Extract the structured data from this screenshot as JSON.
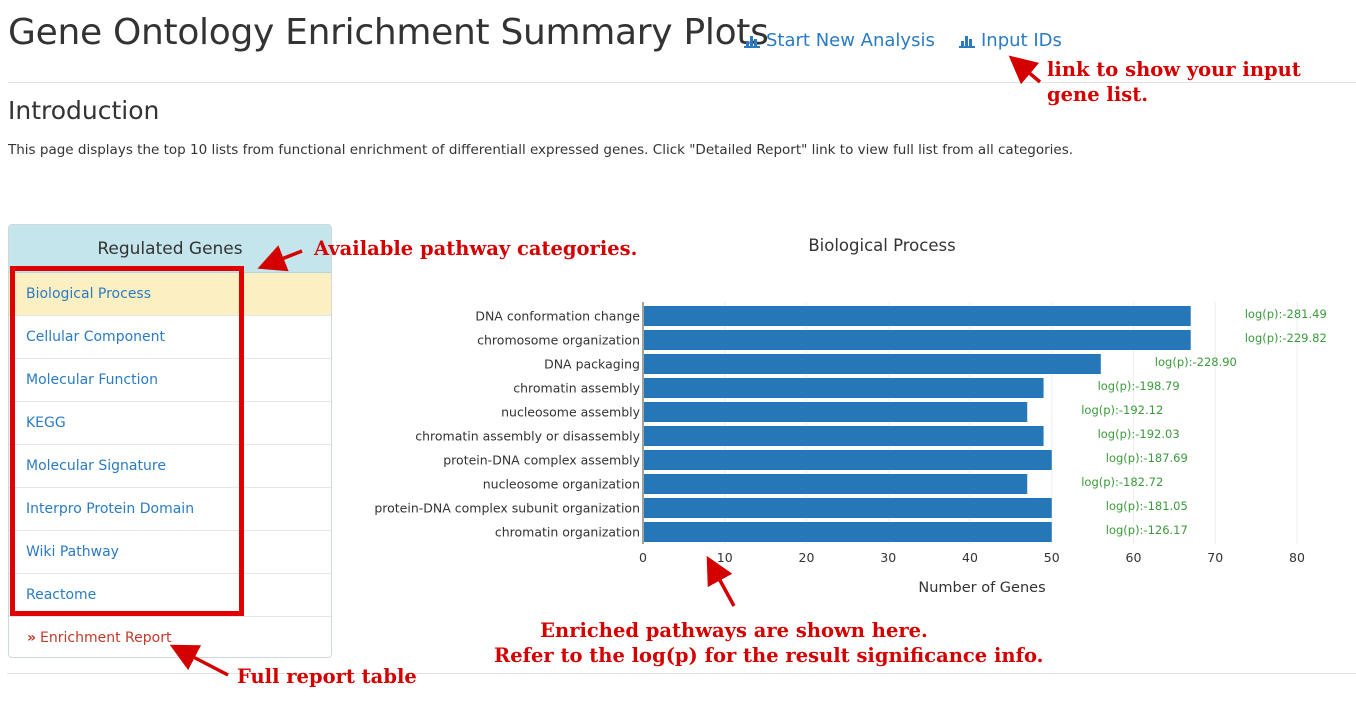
{
  "header": {
    "title": "Gene Ontology Enrichment Summary Plots",
    "links": [
      {
        "label": "Start New Analysis",
        "icon": "bar-chart-icon"
      },
      {
        "label": "Input IDs",
        "icon": "bar-chart-icon"
      }
    ]
  },
  "intro": {
    "heading": "Introduction",
    "text": "This page displays the top 10 lists from functional enrichment of differentiall expressed genes. Click \"Detailed Report\" link to view full list from all categories."
  },
  "panel": {
    "heading": "Regulated Genes",
    "categories": [
      "Biological Process",
      "Cellular Component",
      "Molecular Function",
      "KEGG",
      "Molecular Signature",
      "Interpro Protein Domain",
      "Wiki Pathway",
      "Reactome"
    ],
    "active_category": "Biological Process",
    "report_link": "Enrichment Report"
  },
  "annotations": {
    "input_ids_line1": "link to show your input",
    "input_ids_line2": "gene list.",
    "categories": "Available pathway categories.",
    "enriched_line1": "Enriched pathways are shown here.",
    "enriched_line2": "Refer to the log(p) for the result significance info.",
    "report": "Full report table"
  },
  "colors": {
    "bar": "#2677b8",
    "log_label": "#3a9a3a",
    "link": "#2a7bc4",
    "annotation": "#d40000",
    "panel_header": "#c3e5eb",
    "active_row": "#fcefc2"
  },
  "chart_data": {
    "type": "bar",
    "orientation": "horizontal",
    "title": "Biological Process",
    "xlabel": "Number of Genes",
    "ylabel": "",
    "xlim": [
      0,
      80
    ],
    "xticks": [
      0,
      10,
      20,
      30,
      40,
      50,
      60,
      70,
      80
    ],
    "grid": true,
    "categories": [
      "DNA conformation change",
      "chromosome organization",
      "DNA packaging",
      "chromatin assembly",
      "nucleosome assembly",
      "chromatin assembly or disassembly",
      "protein-DNA complex assembly",
      "nucleosome organization",
      "protein-DNA complex subunit organization",
      "chromatin organization"
    ],
    "values": [
      67,
      67,
      56,
      49,
      47,
      49,
      50,
      47,
      50,
      50
    ],
    "labels": [
      "log(p):-281.49",
      "log(p):-229.82",
      "log(p):-228.90",
      "log(p):-198.79",
      "log(p):-192.12",
      "log(p):-192.03",
      "log(p):-187.69",
      "log(p):-182.72",
      "log(p):-181.05",
      "log(p):-126.17"
    ]
  }
}
